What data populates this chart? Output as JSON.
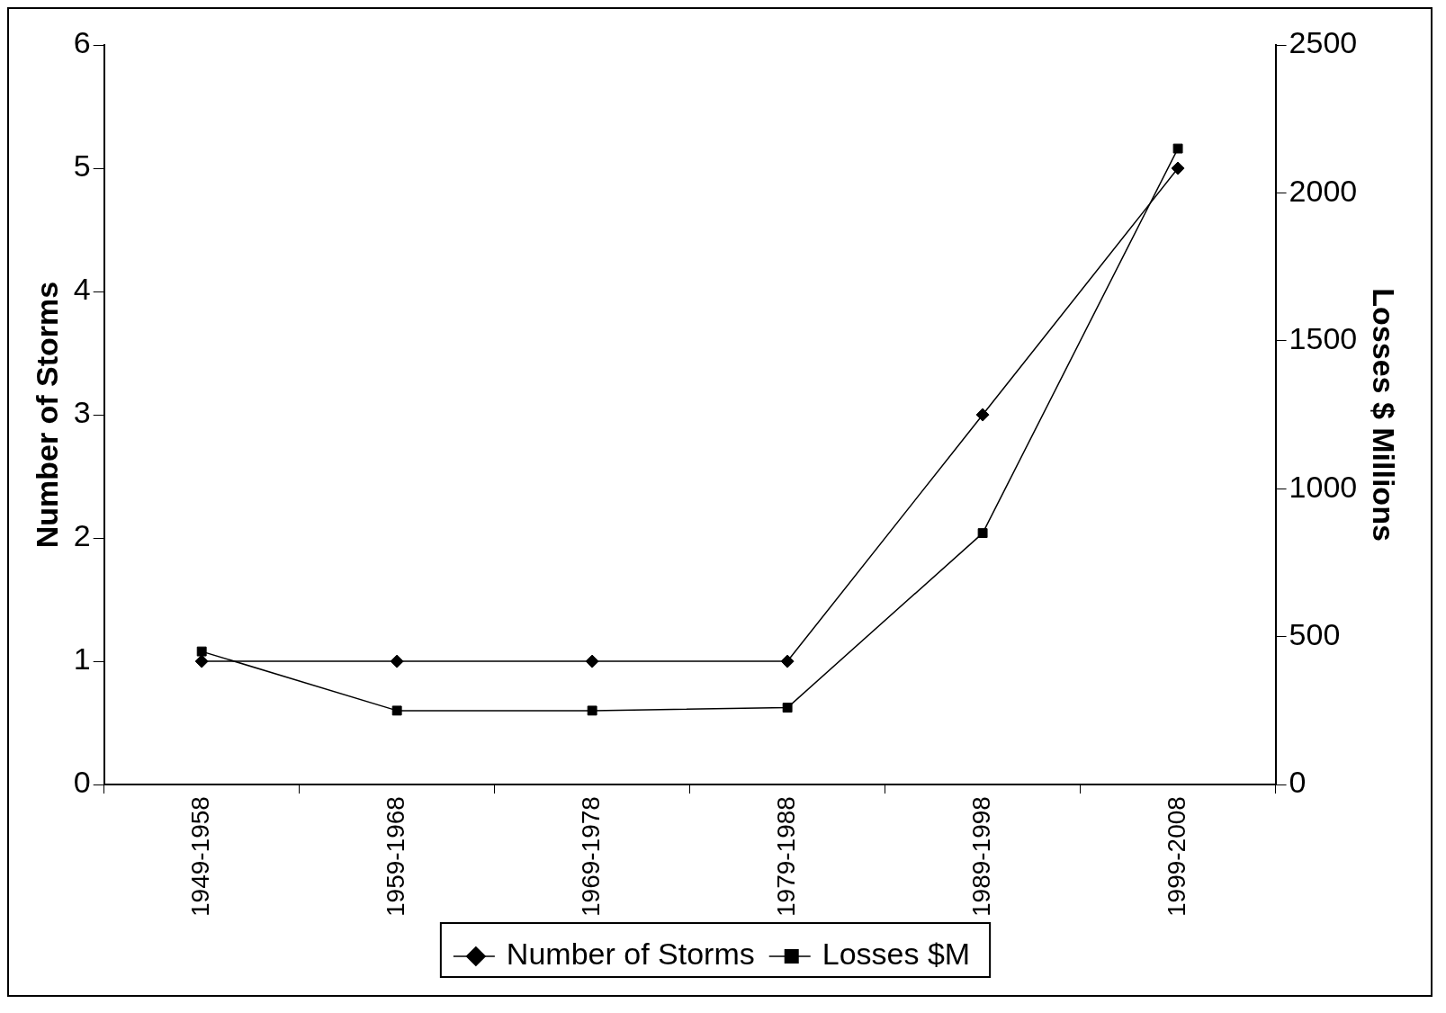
{
  "chart_data": {
    "type": "line",
    "ylabel": "Number of Storms",
    "y2label": "Losses $ Millions",
    "categories": [
      "1949-1958",
      "1959-1968",
      "1969-1978",
      "1979-1988",
      "1989-1998",
      "1999-2008"
    ],
    "series": [
      {
        "name": "Number of Storms",
        "color": "#000000",
        "marker": "diamond",
        "values": [
          1,
          1,
          1,
          1,
          3,
          5
        ]
      },
      {
        "name": "Losses $M",
        "color": "#000000",
        "marker": "square",
        "axis": "y2",
        "values": [
          450,
          250,
          250,
          260,
          850,
          2150
        ]
      }
    ],
    "ylim": [
      0,
      6
    ],
    "yticks": [
      0,
      1,
      2,
      3,
      4,
      5,
      6
    ],
    "y2lim": [
      0,
      2500
    ],
    "y2ticks": [
      0,
      500,
      1000,
      1500,
      2000,
      2500
    ],
    "legend": "bottom"
  }
}
